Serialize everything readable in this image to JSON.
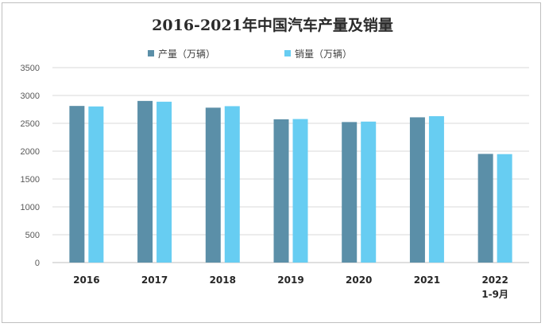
{
  "chart_data": {
    "type": "bar",
    "title": "2016-2021年中国汽车产量及销量",
    "categories": [
      [
        "2016"
      ],
      [
        "2017"
      ],
      [
        "2018"
      ],
      [
        "2019"
      ],
      [
        "2020"
      ],
      [
        "2021"
      ],
      [
        "2022",
        "1-9月"
      ]
    ],
    "series": [
      {
        "name": "产量（万辆）",
        "color": "#5b8fa8",
        "values": [
          2812,
          2902,
          2781,
          2572,
          2523,
          2608,
          1951
        ]
      },
      {
        "name": "销量（万辆）",
        "color": "#67cdf2",
        "values": [
          2803,
          2888,
          2808,
          2577,
          2531,
          2628,
          1947
        ]
      }
    ],
    "ylim": [
      0,
      3500
    ],
    "yticks": [
      0,
      500,
      1000,
      1500,
      2000,
      2500,
      3000,
      3500
    ],
    "grid": true,
    "legend_position": "top"
  }
}
